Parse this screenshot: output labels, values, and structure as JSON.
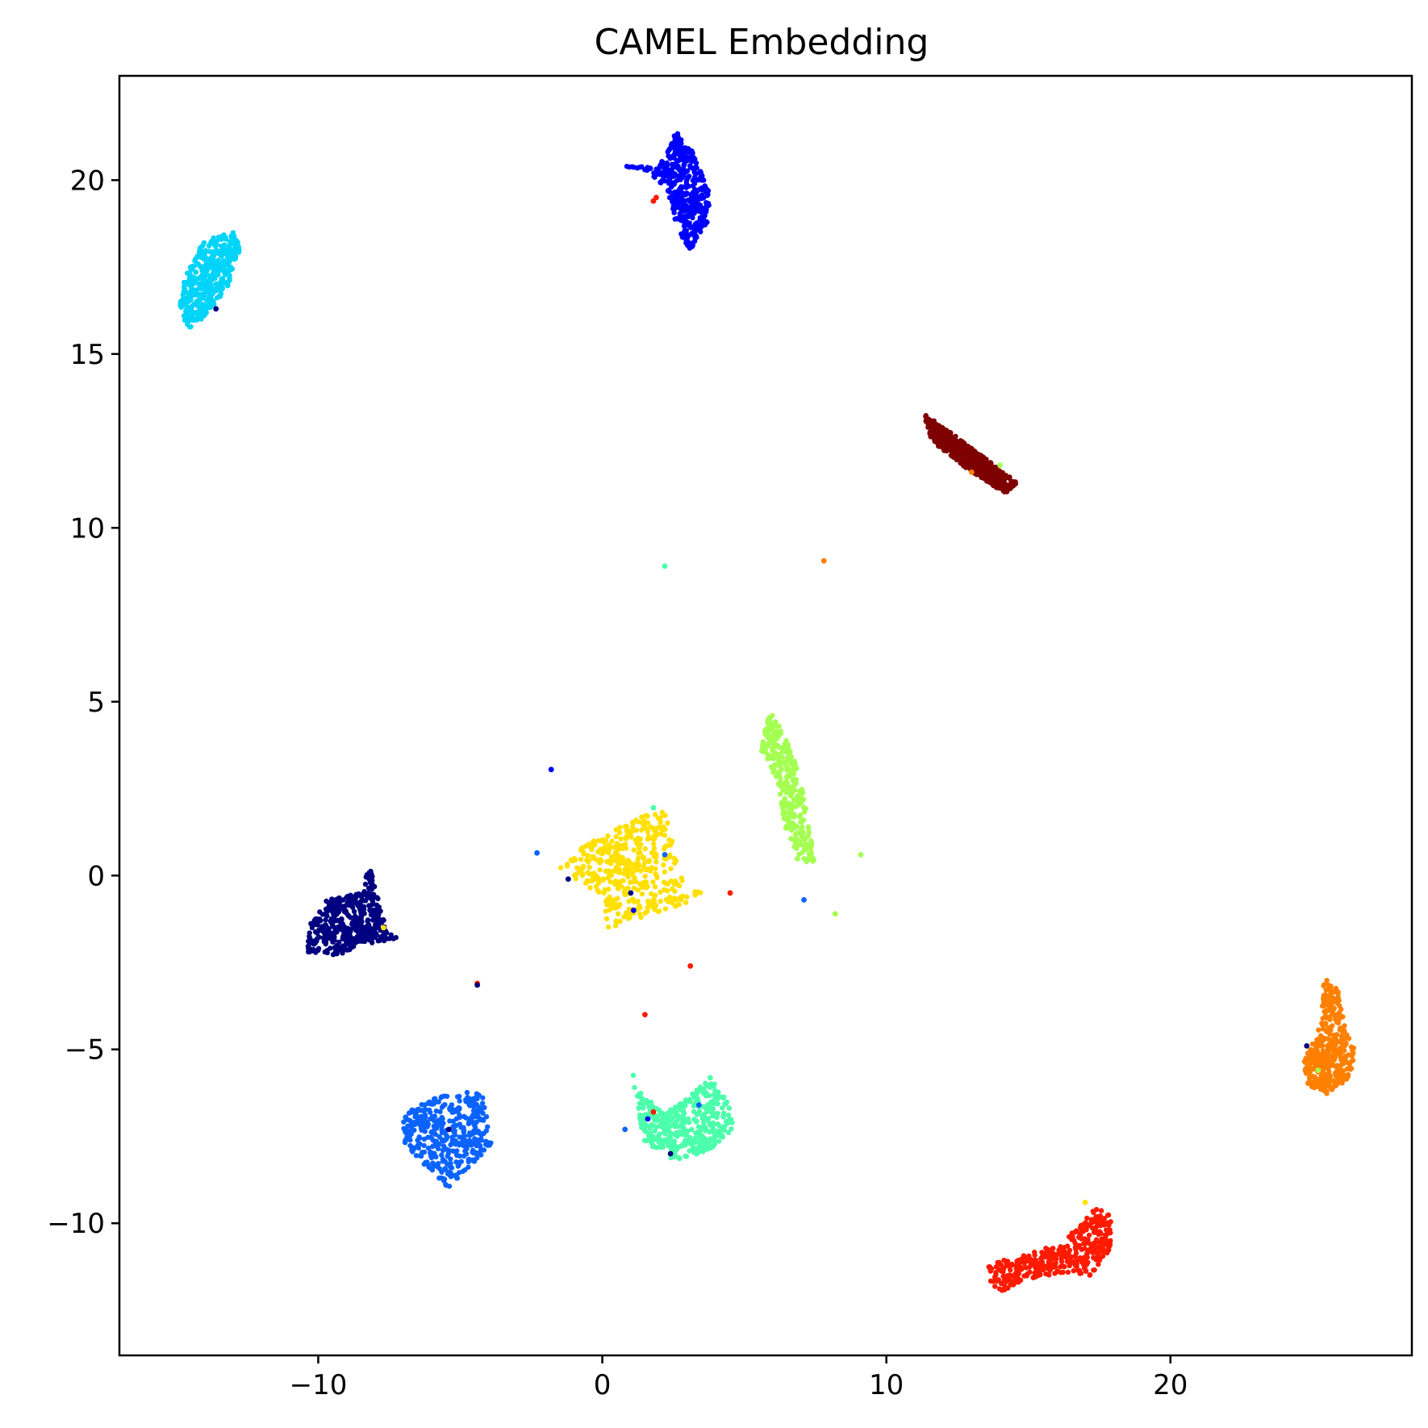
{
  "chart_data": {
    "type": "scatter",
    "title": "CAMEL Embedding",
    "xlabel": "",
    "ylabel": "",
    "xlim": [
      -17.0,
      28.5
    ],
    "ylim": [
      -13.8,
      23.0
    ],
    "x_ticks": [
      {
        "value": -10,
        "label": "−10"
      },
      {
        "value": 0,
        "label": "0"
      },
      {
        "value": 10,
        "label": "10"
      },
      {
        "value": 20,
        "label": "20"
      }
    ],
    "y_ticks": [
      {
        "value": -10,
        "label": "−10"
      },
      {
        "value": -5,
        "label": "−5"
      },
      {
        "value": 0,
        "label": "0"
      },
      {
        "value": 5,
        "label": "5"
      },
      {
        "value": 10,
        "label": "10"
      },
      {
        "value": 15,
        "label": "15"
      },
      {
        "value": 20,
        "label": "20"
      }
    ],
    "grid": false,
    "legend": "none",
    "clusters": [
      {
        "color": "#0000ff",
        "outline": [
          [
            0.7,
            20.4
          ],
          [
            2.0,
            20.4
          ],
          [
            2.6,
            21.4
          ],
          [
            3.2,
            20.8
          ],
          [
            3.8,
            19.6
          ],
          [
            3.7,
            18.8
          ],
          [
            3.1,
            18.0
          ],
          [
            2.6,
            18.6
          ],
          [
            2.4,
            19.4
          ],
          [
            2.2,
            19.8
          ],
          [
            1.5,
            20.3
          ]
        ],
        "npoints": 430
      },
      {
        "color": "#00d4f8",
        "outline": [
          [
            -14.9,
            16.3
          ],
          [
            -14.7,
            17.2
          ],
          [
            -14.0,
            18.3
          ],
          [
            -13.0,
            18.5
          ],
          [
            -12.7,
            18.0
          ],
          [
            -13.2,
            16.9
          ],
          [
            -13.9,
            16.2
          ],
          [
            -14.5,
            15.6
          ]
        ],
        "npoints": 390
      },
      {
        "color": "#7f0000",
        "outline": [
          [
            11.3,
            13.3
          ],
          [
            12.5,
            12.6
          ],
          [
            13.8,
            11.8
          ],
          [
            14.6,
            11.3
          ],
          [
            14.2,
            11.0
          ],
          [
            13.0,
            11.6
          ],
          [
            11.6,
            12.5
          ]
        ],
        "npoints": 520
      },
      {
        "color": "#a4ff52",
        "outline": [
          [
            5.8,
            4.8
          ],
          [
            6.4,
            4.2
          ],
          [
            6.9,
            3.0
          ],
          [
            7.3,
            1.5
          ],
          [
            7.5,
            0.4
          ],
          [
            6.9,
            0.4
          ],
          [
            6.4,
            1.5
          ],
          [
            6.2,
            2.6
          ],
          [
            5.6,
            3.6
          ]
        ],
        "npoints": 300
      },
      {
        "color": "#ffe000",
        "outline": [
          [
            -1.5,
            0.2
          ],
          [
            -0.5,
            1.0
          ],
          [
            1.0,
            1.6
          ],
          [
            2.2,
            1.9
          ],
          [
            2.5,
            1.0
          ],
          [
            2.7,
            0.0
          ],
          [
            3.5,
            -0.5
          ],
          [
            3.0,
            -0.9
          ],
          [
            2.2,
            -1.0
          ],
          [
            1.2,
            -1.3
          ],
          [
            0.2,
            -1.5
          ],
          [
            0.0,
            -0.6
          ],
          [
            -0.8,
            -0.2
          ]
        ],
        "npoints": 420
      },
      {
        "color": "#000080",
        "outline": [
          [
            -10.3,
            -1.4
          ],
          [
            -9.7,
            -0.7
          ],
          [
            -8.5,
            -0.5
          ],
          [
            -8.2,
            0.3
          ],
          [
            -7.9,
            -0.6
          ],
          [
            -7.6,
            -1.6
          ],
          [
            -7.2,
            -1.8
          ],
          [
            -8.5,
            -2.0
          ],
          [
            -9.3,
            -2.3
          ],
          [
            -10.4,
            -2.2
          ]
        ],
        "npoints": 430
      },
      {
        "color": "#0b63ff",
        "outline": [
          [
            -7.0,
            -6.8
          ],
          [
            -5.9,
            -6.4
          ],
          [
            -4.9,
            -6.2
          ],
          [
            -4.2,
            -6.3
          ],
          [
            -3.9,
            -7.8
          ],
          [
            -5.0,
            -8.6
          ],
          [
            -5.4,
            -9.0
          ],
          [
            -6.4,
            -8.2
          ],
          [
            -7.0,
            -7.7
          ]
        ],
        "npoints": 400
      },
      {
        "color": "#4cffab",
        "outline": [
          [
            0.9,
            -5.3
          ],
          [
            1.4,
            -6.3
          ],
          [
            2.2,
            -6.8
          ],
          [
            3.0,
            -6.4
          ],
          [
            3.8,
            -5.8
          ],
          [
            4.5,
            -6.6
          ],
          [
            4.6,
            -7.3
          ],
          [
            3.8,
            -7.9
          ],
          [
            2.5,
            -8.2
          ],
          [
            1.4,
            -7.6
          ],
          [
            1.3,
            -6.9
          ],
          [
            1.1,
            -6.0
          ]
        ],
        "npoints": 420
      },
      {
        "color": "#ff8000",
        "outline": [
          [
            25.4,
            -2.9
          ],
          [
            25.9,
            -3.3
          ],
          [
            26.2,
            -4.5
          ],
          [
            26.6,
            -5.1
          ],
          [
            26.2,
            -5.9
          ],
          [
            25.5,
            -6.3
          ],
          [
            24.8,
            -6.0
          ],
          [
            24.7,
            -5.3
          ],
          [
            25.3,
            -4.3
          ]
        ],
        "npoints": 380
      },
      {
        "color": "#ff1a00",
        "outline": [
          [
            13.6,
            -11.2
          ],
          [
            14.8,
            -10.9
          ],
          [
            16.0,
            -10.6
          ],
          [
            16.9,
            -10.0
          ],
          [
            17.4,
            -9.5
          ],
          [
            17.9,
            -9.8
          ],
          [
            17.9,
            -10.8
          ],
          [
            17.2,
            -11.5
          ],
          [
            16.3,
            -11.4
          ],
          [
            15.0,
            -11.6
          ],
          [
            14.0,
            -12.0
          ],
          [
            13.6,
            -11.7
          ]
        ],
        "npoints": 400
      }
    ],
    "outliers": [
      {
        "x": 2.2,
        "y": 8.9,
        "color": "#4cffab"
      },
      {
        "x": 7.8,
        "y": 9.05,
        "color": "#ff8000"
      },
      {
        "x": -1.8,
        "y": 3.05,
        "color": "#0000ff"
      },
      {
        "x": -2.3,
        "y": 0.65,
        "color": "#0b63ff"
      },
      {
        "x": 4.5,
        "y": -0.5,
        "color": "#ff1a00"
      },
      {
        "x": 7.1,
        "y": -0.7,
        "color": "#0b63ff"
      },
      {
        "x": 8.2,
        "y": -1.1,
        "color": "#a4ff52"
      },
      {
        "x": 9.1,
        "y": 0.6,
        "color": "#a4ff52"
      },
      {
        "x": 3.1,
        "y": -2.6,
        "color": "#ff1a00"
      },
      {
        "x": 1.5,
        "y": -4.0,
        "color": "#ff1a00"
      },
      {
        "x": -4.4,
        "y": -3.1,
        "color": "#ff1a00"
      },
      {
        "x": -4.4,
        "y": -3.15,
        "color": "#000080"
      },
      {
        "x": 0.8,
        "y": -7.3,
        "color": "#0b63ff"
      },
      {
        "x": 1.8,
        "y": 19.4,
        "color": "#ff1a00"
      },
      {
        "x": 1.9,
        "y": 19.5,
        "color": "#ff1a00"
      },
      {
        "x": 17.0,
        "y": -9.4,
        "color": "#ffe000"
      },
      {
        "x": -13.6,
        "y": 16.3,
        "color": "#000080"
      },
      {
        "x": 24.8,
        "y": -4.9,
        "color": "#000080"
      },
      {
        "x": 25.2,
        "y": -5.6,
        "color": "#a4ff52"
      },
      {
        "x": 14.0,
        "y": 11.8,
        "color": "#a4ff52"
      },
      {
        "x": 13.0,
        "y": 11.6,
        "color": "#ff8000"
      },
      {
        "x": 2.4,
        "y": -8.0,
        "color": "#000080"
      },
      {
        "x": 1.8,
        "y": 1.95,
        "color": "#4cffab"
      },
      {
        "x": -1.2,
        "y": -0.1,
        "color": "#000080"
      },
      {
        "x": 1.0,
        "y": -0.5,
        "color": "#000080"
      },
      {
        "x": 1.1,
        "y": -1.0,
        "color": "#0000ff"
      },
      {
        "x": 2.2,
        "y": 0.6,
        "color": "#0b63ff"
      },
      {
        "x": 3.4,
        "y": -6.6,
        "color": "#0b63ff"
      },
      {
        "x": 1.6,
        "y": -7.0,
        "color": "#0000ff"
      },
      {
        "x": 1.8,
        "y": -6.8,
        "color": "#ff1a00"
      },
      {
        "x": -7.7,
        "y": -1.5,
        "color": "#ffe000"
      },
      {
        "x": -5.4,
        "y": -7.3,
        "color": "#000080"
      }
    ]
  }
}
